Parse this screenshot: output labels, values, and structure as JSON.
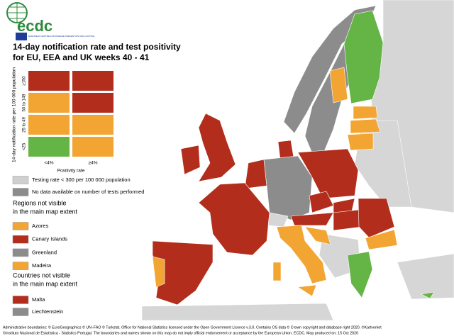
{
  "header": {
    "logo": "ecdc",
    "logo_subtitle": "EUROPEAN CENTRE FOR DISEASE PREVENTION AND CONTROL",
    "title": [
      "14-day notification rate and test positivity",
      "for EU, EEA and UK weeks 40 - 41"
    ]
  },
  "matrix": {
    "y_label": "14-day notification rate per 100 000 population",
    "x_label": "Positivity rate",
    "columns": [
      "<4%",
      "≥4%"
    ],
    "rows": [
      {
        "label": "≥150",
        "cells": [
          "#b22d1c",
          "#b22d1c"
        ]
      },
      {
        "label": "50 to 149",
        "cells": [
          "#f2a532",
          "#b22d1c"
        ]
      },
      {
        "label": "25 to 49",
        "cells": [
          "#f2a532",
          "#f2a532"
        ]
      },
      {
        "label": "<25",
        "cells": [
          "#65b446",
          "#f2a532"
        ]
      }
    ]
  },
  "legend": {
    "general": [
      {
        "label": "Testing rate < 300 per 100 000 population",
        "color": "#cfcfcf"
      },
      {
        "label": "No data available on number of tests performed",
        "color": "#8c8c8c"
      }
    ],
    "regions_heading": [
      "Regions not visible",
      "in the main map extent"
    ],
    "regions": [
      {
        "label": "Azores",
        "color": "#f2a532"
      },
      {
        "label": "Canary Islands",
        "color": "#b22d1c"
      },
      {
        "label": "Greenland",
        "color": "#8c8c8c"
      },
      {
        "label": "Madeira",
        "color": "#f2a532"
      }
    ],
    "countries_heading": [
      "Countries not visible",
      "in the main map extent"
    ],
    "countries": [
      {
        "label": "Malta",
        "color": "#b22d1c"
      },
      {
        "label": "Liechtenstein",
        "color": "#8c8c8c"
      }
    ]
  },
  "footer": [
    "Administrative boundaries: © EuroGeographics © UN–FAO © Turkstat. Office for National Statistics licensed under the Open Government Licence v.3.0. Contains OS data © Crown copyright and database right 2020. ©Kartverket",
    "©Instituto Nacional de Estatística - Statistics Portugal. The boundaries and names shown on this map do not imply official endorsement or acceptance by the European Union. ECDC. Map produced on: 15 Oct 2020"
  ]
}
